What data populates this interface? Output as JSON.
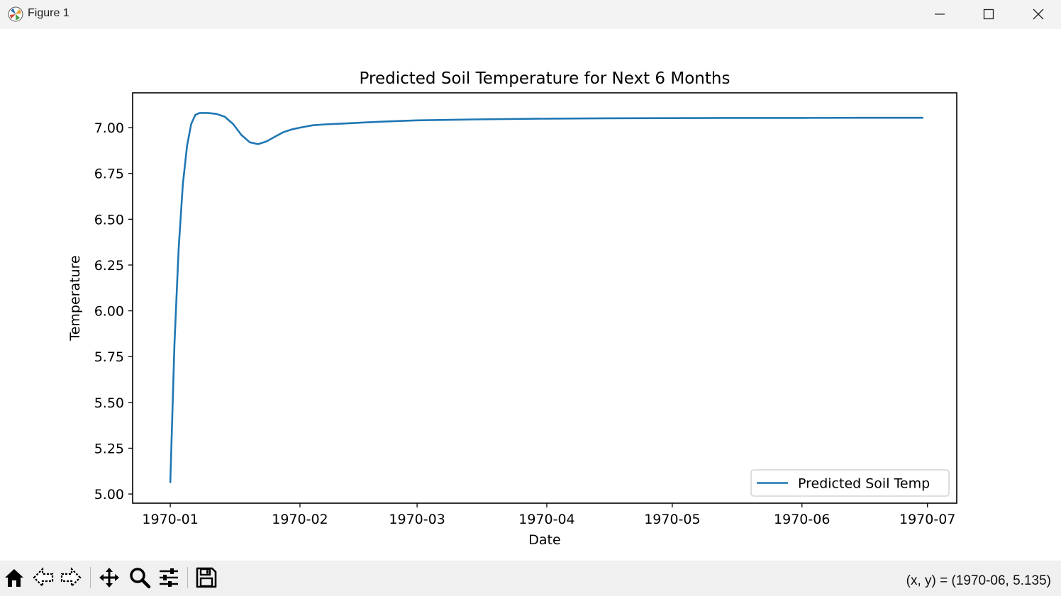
{
  "window": {
    "title": "Figure 1",
    "icon": "matplotlib-logo-icon",
    "controls": [
      "minimize-icon",
      "maximize-icon",
      "close-icon"
    ]
  },
  "toolbar": {
    "tools": [
      "home-icon",
      "back-arrow-icon",
      "forward-arrow-icon",
      "pan-icon",
      "zoom-icon",
      "configure-subplots-icon",
      "save-icon"
    ],
    "coords": "(x, y) = (1970-06, 5.135)"
  },
  "chart_data": {
    "type": "line",
    "title": "Predicted Soil Temperature for Next 6 Months",
    "xlabel": "Date",
    "ylabel": "Temperature",
    "xlim": [
      "1969-12-23",
      "1970-07-08"
    ],
    "ylim": [
      4.95,
      7.19
    ],
    "grid": false,
    "legend_position": "lower right",
    "xticks": [
      "1970-01-01",
      "1970-02-01",
      "1970-03-01",
      "1970-04-01",
      "1970-05-01",
      "1970-06-01",
      "1970-07-01"
    ],
    "xtick_labels": [
      "1970-01",
      "1970-02",
      "1970-03",
      "1970-04",
      "1970-05",
      "1970-06",
      "1970-07"
    ],
    "yticks": [
      5.0,
      5.25,
      5.5,
      5.75,
      6.0,
      6.25,
      6.5,
      6.75,
      7.0
    ],
    "ytick_labels": [
      "5.00",
      "5.25",
      "5.50",
      "5.75",
      "6.00",
      "6.25",
      "6.50",
      "6.75",
      "7.00"
    ],
    "series": [
      {
        "name": "Predicted Soil Temp",
        "color": "#1f77b4",
        "x": [
          "1970-01-01",
          "1970-01-02",
          "1970-01-03",
          "1970-01-04",
          "1970-01-05",
          "1970-01-06",
          "1970-01-07",
          "1970-01-08",
          "1970-01-09",
          "1970-01-10",
          "1970-01-12",
          "1970-01-14",
          "1970-01-16",
          "1970-01-18",
          "1970-01-20",
          "1970-01-22",
          "1970-01-24",
          "1970-01-26",
          "1970-01-28",
          "1970-01-30",
          "1970-02-01",
          "1970-02-04",
          "1970-02-07",
          "1970-02-11",
          "1970-02-16",
          "1970-02-21",
          "1970-03-01",
          "1970-03-15",
          "1970-04-01",
          "1970-04-15",
          "1970-05-01",
          "1970-05-15",
          "1970-06-01",
          "1970-06-15",
          "1970-06-30"
        ],
        "y": [
          5.06,
          5.82,
          6.34,
          6.69,
          6.9,
          7.02,
          7.07,
          7.08,
          7.08,
          7.08,
          7.075,
          7.06,
          7.02,
          6.96,
          6.92,
          6.91,
          6.925,
          6.95,
          6.975,
          6.99,
          7.0,
          7.013,
          7.018,
          7.022,
          7.028,
          7.033,
          7.04,
          7.045,
          7.049,
          7.051,
          7.052,
          7.053,
          7.053,
          7.054,
          7.054
        ]
      }
    ]
  }
}
